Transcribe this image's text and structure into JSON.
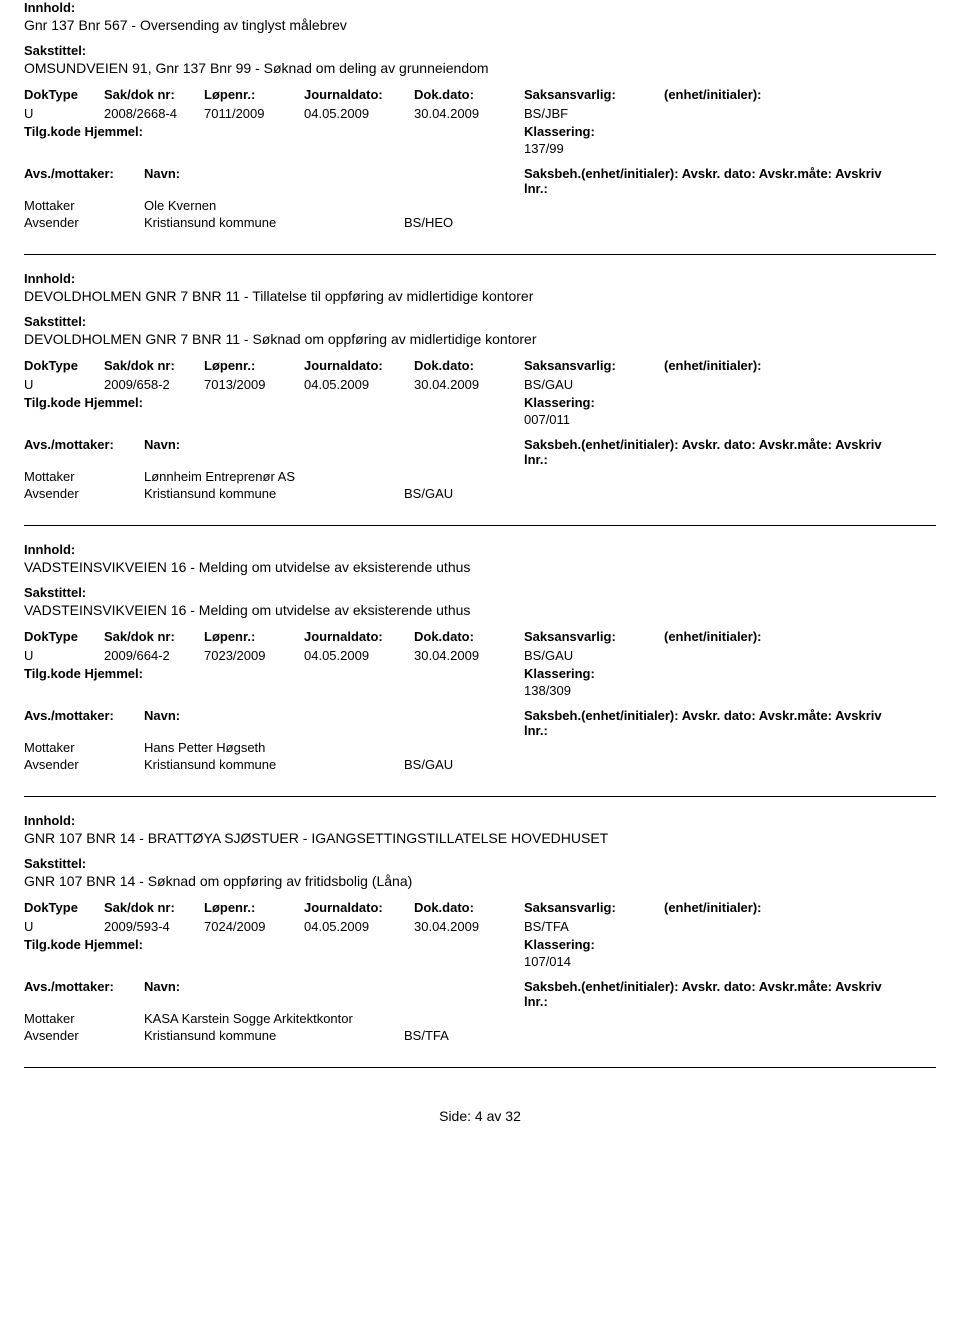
{
  "labels": {
    "innhold": "Innhold:",
    "sakstittel": "Sakstittel:",
    "doktype": "DokType",
    "sakdok": "Sak/dok nr:",
    "lopenr": "Løpenr.:",
    "journaldato": "Journaldato:",
    "dokdato": "Dok.dato:",
    "saksansvarlig": "Saksansvarlig:",
    "enhet": "(enhet/initialer):",
    "tilgkode": "Tilg.kode",
    "hjemmel": "Hjemmel:",
    "klassering": "Klassering:",
    "avsmottaker": "Avs./mottaker:",
    "navn": "Navn:",
    "saksbeh": "Saksbeh.(enhet/initialer): Avskr. dato: Avskr.måte: Avskriv lnr.:",
    "mottaker": "Mottaker",
    "avsender": "Avsender"
  },
  "entries": [
    {
      "innhold": "Gnr 137 Bnr 567 - Oversending av tinglyst målebrev",
      "sakstittel": "OMSUNDVEIEN 91, Gnr 137 Bnr 99 - Søknad om deling av grunneiendom",
      "doktype": "U",
      "sakdok": "2008/2668-4",
      "lopenr": "7011/2009",
      "journaldato": "04.05.2009",
      "dokdato": "30.04.2009",
      "saksansvarlig": "BS/JBF",
      "klassering": "137/99",
      "mottaker_navn": "Ole Kvernen",
      "avsender_navn": "Kristiansund kommune",
      "avsender_kode": "BS/HEO"
    },
    {
      "innhold": "DEVOLDHOLMEN GNR 7 BNR 11 - Tillatelse til oppføring av midlertidige kontorer",
      "sakstittel": "DEVOLDHOLMEN GNR 7 BNR 11 - Søknad om oppføring av midlertidige kontorer",
      "doktype": "U",
      "sakdok": "2009/658-2",
      "lopenr": "7013/2009",
      "journaldato": "04.05.2009",
      "dokdato": "30.04.2009",
      "saksansvarlig": "BS/GAU",
      "klassering": "007/011",
      "mottaker_navn": "Lønnheim Entreprenør AS",
      "avsender_navn": "Kristiansund kommune",
      "avsender_kode": "BS/GAU"
    },
    {
      "innhold": "VADSTEINSVIKVEIEN 16 - Melding om utvidelse av eksisterende uthus",
      "sakstittel": "VADSTEINSVIKVEIEN 16 - Melding om utvidelse av eksisterende uthus",
      "doktype": "U",
      "sakdok": "2009/664-2",
      "lopenr": "7023/2009",
      "journaldato": "04.05.2009",
      "dokdato": "30.04.2009",
      "saksansvarlig": "BS/GAU",
      "klassering": "138/309",
      "mottaker_navn": "Hans Petter Høgseth",
      "avsender_navn": "Kristiansund kommune",
      "avsender_kode": "BS/GAU"
    },
    {
      "innhold": "GNR 107 BNR 14 -  BRATTØYA SJØSTUER - IGANGSETTINGSTILLATELSE HOVEDHUSET",
      "sakstittel": "GNR 107 BNR 14 - Søknad om oppføring av fritidsbolig (Låna)",
      "doktype": "U",
      "sakdok": "2009/593-4",
      "lopenr": "7024/2009",
      "journaldato": "04.05.2009",
      "dokdato": "30.04.2009",
      "saksansvarlig": "BS/TFA",
      "klassering": "107/014",
      "mottaker_navn": "KASA Karstein Sogge Arkitektkontor",
      "avsender_navn": "Kristiansund kommune",
      "avsender_kode": "BS/TFA"
    }
  ],
  "footer": {
    "side_label": "Side:",
    "page": "4",
    "of_label": "av",
    "total": "32"
  }
}
